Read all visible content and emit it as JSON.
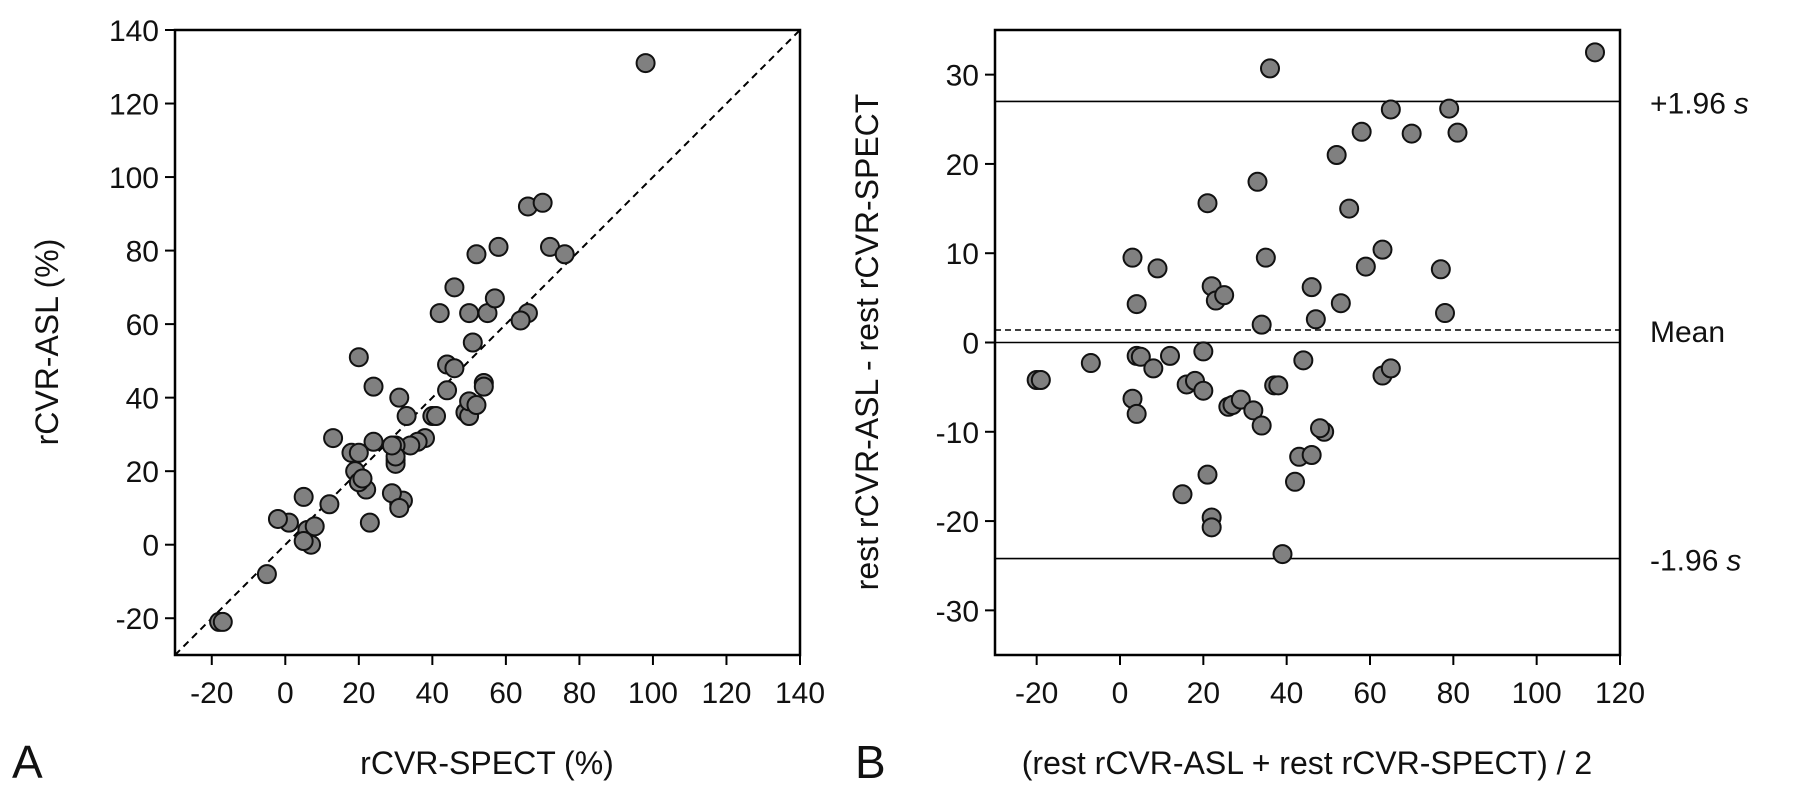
{
  "chart_data": [
    {
      "type": "scatter",
      "panel_label": "A",
      "xlabel": "rCVR-SPECT (%)",
      "ylabel": "rCVR-ASL (%)",
      "xlim": [
        -30,
        140
      ],
      "ylim": [
        -30,
        140
      ],
      "xticks": [
        -20,
        0,
        20,
        40,
        60,
        80,
        100,
        120,
        140
      ],
      "yticks": [
        -20,
        0,
        20,
        40,
        60,
        80,
        100,
        120,
        140
      ],
      "grid": false,
      "identity_line": true,
      "marker_color": "#808080",
      "x": [
        98,
        66,
        70,
        72,
        76,
        58,
        66,
        64,
        52,
        46,
        50,
        42,
        55,
        57,
        44,
        46,
        51,
        44,
        54,
        54,
        49,
        50,
        50,
        52,
        40,
        41,
        38,
        36,
        34,
        33,
        31,
        30,
        31,
        32,
        20,
        24,
        18,
        19,
        20,
        22,
        20,
        21,
        23,
        24,
        13,
        12,
        29,
        30,
        30,
        31,
        5,
        1,
        -2,
        6,
        8,
        7,
        5,
        -5,
        -18,
        -17,
        30,
        29
      ],
      "y": [
        131,
        92,
        93,
        81,
        79,
        81,
        63,
        61,
        79,
        70,
        63,
        63,
        63,
        67,
        49,
        48,
        55,
        42,
        44,
        43,
        36,
        35,
        39,
        38,
        35,
        35,
        29,
        28,
        27,
        35,
        40,
        23,
        11,
        12,
        51,
        28,
        25,
        20,
        25,
        15,
        17,
        18,
        6,
        43,
        29,
        11,
        14,
        22,
        27,
        10,
        13,
        6,
        7,
        4,
        5,
        0,
        1,
        -8,
        -21,
        -21,
        24,
        27
      ]
    },
    {
      "type": "scatter",
      "panel_label": "B",
      "xlabel": "(rest rCVR-ASL + rest rCVR-SPECT) / 2",
      "ylabel": "rest rCVR-ASL - rest rCVR-SPECT",
      "xlim": [
        -30,
        120
      ],
      "ylim": [
        -35,
        35
      ],
      "xticks": [
        -20,
        0,
        20,
        40,
        60,
        80,
        100,
        120
      ],
      "yticks": [
        -30,
        -20,
        -10,
        0,
        10,
        20,
        30
      ],
      "grid": false,
      "marker_color": "#808080",
      "reference_lines": [
        {
          "value": 27,
          "style": "solid",
          "label_main": "+1.96",
          "label_s": "s"
        },
        {
          "value": 1.4,
          "style": "dashed",
          "label_main": "Mean",
          "label_s": ""
        },
        {
          "value": 0,
          "style": "solid",
          "label_main": "",
          "label_s": ""
        },
        {
          "value": -24.2,
          "style": "solid",
          "label_main": "-1.96",
          "label_s": "s"
        }
      ],
      "x": [
        114,
        36,
        79,
        81,
        65,
        70,
        58,
        52,
        33,
        55,
        21,
        59,
        63,
        77,
        78,
        3,
        9,
        35,
        22,
        23,
        25,
        46,
        53,
        47,
        4,
        34,
        -20,
        -19,
        -7,
        4,
        5,
        8,
        12,
        16,
        18,
        20,
        20,
        63,
        65,
        37,
        38,
        44,
        3,
        4,
        26,
        27,
        29,
        32,
        34,
        49,
        48,
        15,
        21,
        22,
        22,
        42,
        43,
        46,
        39
      ],
      "y": [
        32.5,
        30.7,
        26.2,
        23.5,
        26.1,
        23.4,
        23.6,
        21,
        18,
        15,
        15.6,
        8.5,
        10.4,
        8.2,
        3.3,
        9.5,
        8.3,
        9.5,
        6.3,
        4.7,
        5.3,
        6.2,
        4.4,
        2.6,
        4.3,
        2.0,
        -4.2,
        -4.2,
        -2.3,
        -1.5,
        -1.6,
        -2.9,
        -1.5,
        -4.7,
        -4.3,
        -5.4,
        -1.0,
        -3.7,
        -2.9,
        -4.8,
        -4.8,
        -2.0,
        -6.3,
        -8.0,
        -7.2,
        -7.0,
        -6.4,
        -7.6,
        -9.3,
        -10.0,
        -9.6,
        -17,
        -14.8,
        -19.6,
        -20.7,
        -15.6,
        -12.8,
        -12.6,
        -23.7
      ]
    }
  ]
}
